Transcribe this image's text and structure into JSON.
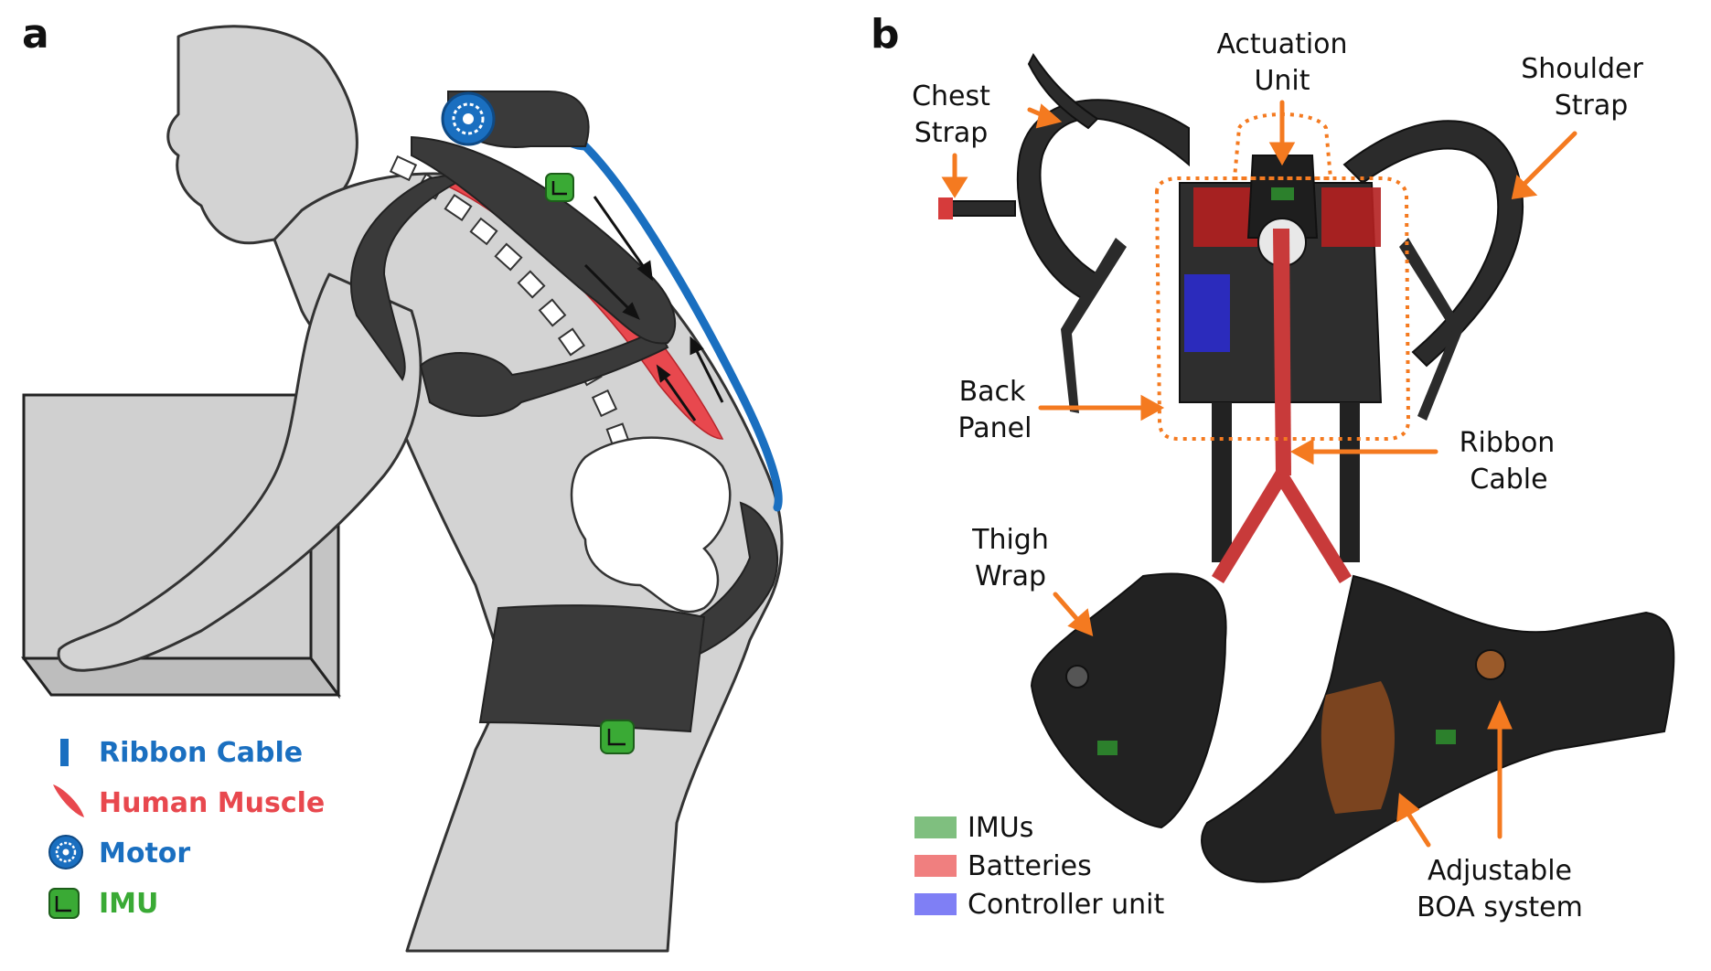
{
  "panels": {
    "a": {
      "letter": "a",
      "legend": [
        {
          "text": "Ribbon Cable",
          "color": "#1a6fc0",
          "icon": "ribbon-cable-icon"
        },
        {
          "text": "Human Muscle",
          "color": "#e8484e",
          "icon": "human-muscle-icon"
        },
        {
          "text": "Motor",
          "color": "#1a6fc0",
          "icon": "motor-icon"
        },
        {
          "text": "IMU",
          "color": "#3aaa35",
          "icon": "imu-icon"
        }
      ]
    },
    "b": {
      "letter": "b",
      "labels": {
        "actuation_unit": [
          "Actuation",
          "Unit"
        ],
        "chest_strap": [
          "Chest",
          "Strap"
        ],
        "shoulder_strap": [
          "Shoulder",
          "Strap"
        ],
        "back_panel": [
          "Back",
          "Panel"
        ],
        "ribbon_cable": [
          "Ribbon",
          "Cable"
        ],
        "thigh_wrap": [
          "Thigh",
          "Wrap"
        ],
        "adjustable_boa": [
          "Adjustable",
          "BOA system"
        ]
      },
      "legend": [
        {
          "text": "IMUs",
          "color": "#7fbf7f"
        },
        {
          "text": "Batteries",
          "color": "#f07f7f"
        },
        {
          "text": "Controller unit",
          "color": "#7f7ff5"
        }
      ],
      "accent_color": "#f47a20"
    }
  }
}
